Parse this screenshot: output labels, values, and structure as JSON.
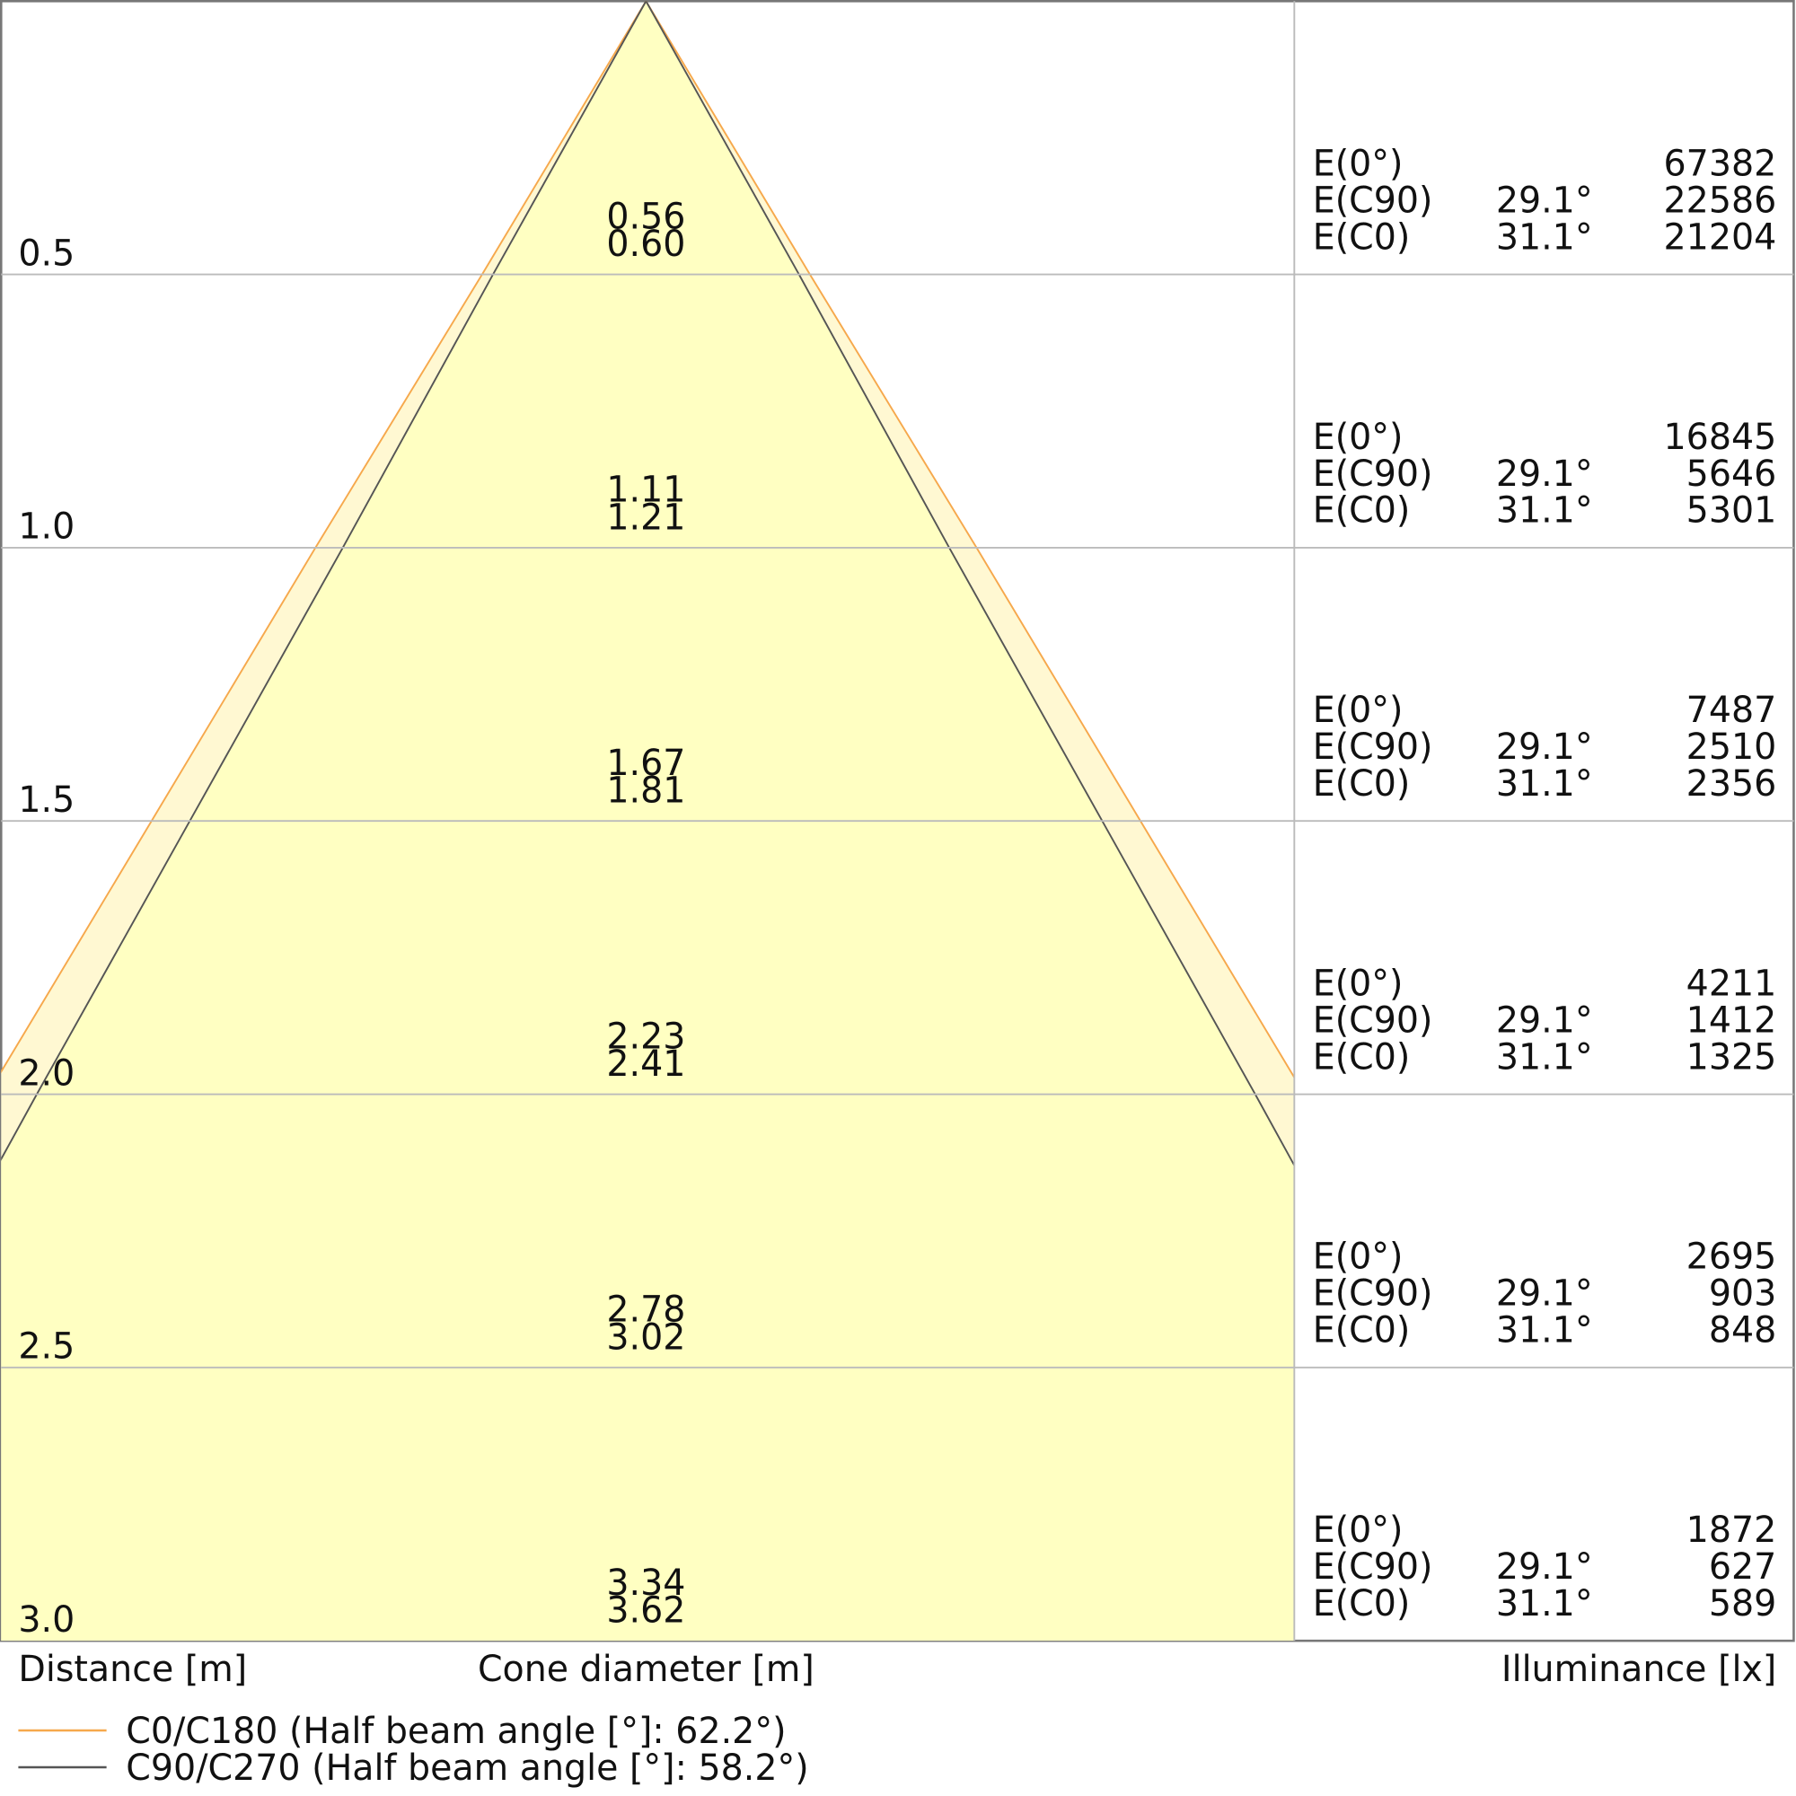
{
  "chart_data": {
    "type": "cone",
    "y_label": "Distance [m]",
    "x_label": "Cone diameter [m]",
    "ylim": [
      0,
      3
    ],
    "yticks": [
      0.5,
      {
        "value": 1,
        "label": "1.0"
      },
      1.5,
      {
        "value": 2,
        "label": "2.0"
      },
      2.5,
      {
        "value": 3,
        "label": "3.0"
      }
    ],
    "series": [
      {
        "name": "C0/C180 (Half beam angle [°]: 62.2°)",
        "color": "#f6a84c",
        "values": [
          0.6,
          1.21,
          1.81,
          2.41,
          3.02,
          3.62
        ],
        "value_labels": [
          "0.60",
          "1.21",
          "1.81",
          "2.41",
          "3.02",
          "3.62"
        ]
      },
      {
        "name": "C90/C270 (Half beam angle [°]: 58.2°)",
        "color": "#555555",
        "values": [
          0.56,
          1.11,
          1.67,
          2.23,
          2.78,
          3.34
        ]
      }
    ],
    "illuminance": {
      "label": "Illuminance [lx]",
      "rows": [
        {
          "name": "E(0°)",
          "values": [
            67382,
            16845,
            7487,
            4211,
            2695,
            1872
          ]
        },
        {
          "name": "E(C90)",
          "angle": "29.1°",
          "values": [
            22586,
            5646,
            2510,
            1412,
            903,
            627
          ]
        },
        {
          "name": "E(C0)",
          "angle": "31.1°",
          "values": [
            21204,
            5301,
            2356,
            1325,
            848,
            589
          ]
        }
      ]
    }
  }
}
